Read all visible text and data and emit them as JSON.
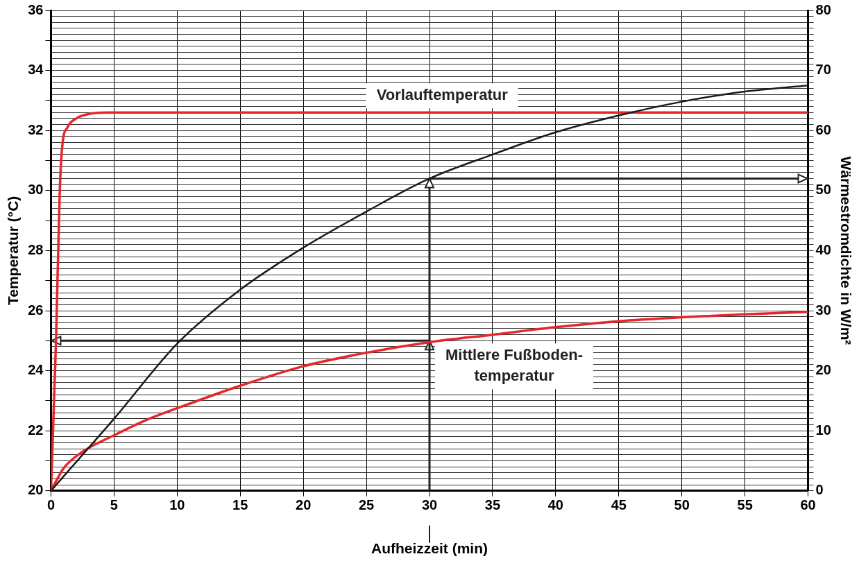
{
  "chart_data": {
    "type": "line",
    "xlabel": "Aufheizzeit (min)",
    "ylabel": "Temperatur (°C)",
    "y2label": "Wärmestromdichte in W/m²",
    "xlim": [
      0,
      60
    ],
    "xticks": [
      0,
      5,
      10,
      15,
      20,
      25,
      30,
      35,
      40,
      45,
      50,
      55,
      60
    ],
    "ylim": [
      20,
      36
    ],
    "yticks": [
      20,
      {
        "value": 21,
        "label": null
      },
      22,
      {
        "value": 23,
        "label": null
      },
      24,
      {
        "value": 25,
        "label": null
      },
      26,
      {
        "value": 27,
        "label": null
      },
      28,
      {
        "value": 29,
        "label": null
      },
      30,
      {
        "value": 31,
        "label": null
      },
      32,
      {
        "value": 33,
        "label": null
      },
      34,
      {
        "value": 35,
        "label": null
      },
      36
    ],
    "y2lim": [
      0,
      80
    ],
    "y2ticks": [
      0,
      {
        "value": 1,
        "label": null
      },
      {
        "value": 2,
        "label": null
      },
      {
        "value": 3,
        "label": null
      },
      {
        "value": 4,
        "label": null
      },
      {
        "value": 5,
        "label": null
      },
      {
        "value": 6,
        "label": null
      },
      {
        "value": 7,
        "label": null
      },
      {
        "value": 8,
        "label": null
      },
      {
        "value": 9,
        "label": null
      },
      10,
      {
        "value": 11,
        "label": null
      },
      {
        "value": 12,
        "label": null
      },
      {
        "value": 13,
        "label": null
      },
      {
        "value": 14,
        "label": null
      },
      {
        "value": 15,
        "label": null
      },
      {
        "value": 16,
        "label": null
      },
      {
        "value": 17,
        "label": null
      },
      {
        "value": 18,
        "label": null
      },
      {
        "value": 19,
        "label": null
      },
      20,
      {
        "value": 21,
        "label": null
      },
      {
        "value": 22,
        "label": null
      },
      {
        "value": 23,
        "label": null
      },
      {
        "value": 24,
        "label": null
      },
      {
        "value": 25,
        "label": null
      },
      {
        "value": 26,
        "label": null
      },
      {
        "value": 27,
        "label": null
      },
      {
        "value": 28,
        "label": null
      },
      {
        "value": 29,
        "label": null
      },
      30,
      {
        "value": 31,
        "label": null
      },
      {
        "value": 32,
        "label": null
      },
      {
        "value": 33,
        "label": null
      },
      {
        "value": 34,
        "label": null
      },
      {
        "value": 35,
        "label": null
      },
      {
        "value": 36,
        "label": null
      },
      {
        "value": 37,
        "label": null
      },
      {
        "value": 38,
        "label": null
      },
      {
        "value": 39,
        "label": null
      },
      40,
      {
        "value": 41,
        "label": null
      },
      {
        "value": 42,
        "label": null
      },
      {
        "value": 43,
        "label": null
      },
      {
        "value": 44,
        "label": null
      },
      {
        "value": 45,
        "label": null
      },
      {
        "value": 46,
        "label": null
      },
      {
        "value": 47,
        "label": null
      },
      {
        "value": 48,
        "label": null
      },
      {
        "value": 49,
        "label": null
      },
      50,
      {
        "value": 51,
        "label": null
      },
      {
        "value": 52,
        "label": null
      },
      {
        "value": 53,
        "label": null
      },
      {
        "value": 54,
        "label": null
      },
      {
        "value": 55,
        "label": null
      },
      {
        "value": 56,
        "label": null
      },
      {
        "value": 57,
        "label": null
      },
      {
        "value": 58,
        "label": null
      },
      {
        "value": 59,
        "label": null
      },
      60,
      {
        "value": 61,
        "label": null
      },
      {
        "value": 62,
        "label": null
      },
      {
        "value": 63,
        "label": null
      },
      {
        "value": 64,
        "label": null
      },
      {
        "value": 65,
        "label": null
      },
      {
        "value": 66,
        "label": null
      },
      {
        "value": 67,
        "label": null
      },
      {
        "value": 68,
        "label": null
      },
      {
        "value": 69,
        "label": null
      },
      70,
      {
        "value": 71,
        "label": null
      },
      {
        "value": 72,
        "label": null
      },
      {
        "value": 73,
        "label": null
      },
      {
        "value": 74,
        "label": null
      },
      {
        "value": 75,
        "label": null
      },
      {
        "value": 76,
        "label": null
      },
      {
        "value": 77,
        "label": null
      },
      {
        "value": 78,
        "label": null
      },
      {
        "value": 79,
        "label": null
      },
      80
    ],
    "grid": true,
    "legend": false,
    "line_style": "solid",
    "marker": "none",
    "series": [
      {
        "color": "#e8262a",
        "x": [
          0,
          0.4,
          0.7,
          0.9,
          1.3,
          2,
          3,
          4.5,
          60
        ],
        "values": [
          20,
          25,
          30,
          31.5,
          32.1,
          32.4,
          32.55,
          32.6,
          32.6
        ]
      },
      {
        "color": "#e8262a",
        "x": [
          0,
          1,
          2.5,
          5,
          7.5,
          10,
          15,
          20,
          25,
          30,
          35,
          40,
          45,
          50,
          55,
          60
        ],
        "values": [
          20,
          20.75,
          21.3,
          21.85,
          22.35,
          22.75,
          23.5,
          24.15,
          24.6,
          24.95,
          25.2,
          25.45,
          25.65,
          25.78,
          25.88,
          25.96
        ]
      },
      {
        "color": "#1a1a1a",
        "axis": "y2",
        "x": [
          0,
          2.5,
          5,
          10,
          15,
          20,
          25,
          30,
          35,
          40,
          45,
          50,
          55,
          60
        ],
        "values": [
          0,
          6,
          12,
          24.5,
          33.5,
          40.5,
          46.5,
          52,
          56,
          59.7,
          62.5,
          64.8,
          66.5,
          67.5
        ]
      }
    ],
    "annotations": [
      {
        "text": "Vorlauftemperatur",
        "x": 31,
        "y": 32.6
      },
      {
        "text": "Mittlere Fußboden-\ntemperatur",
        "x": 30,
        "y": 25
      }
    ]
  }
}
